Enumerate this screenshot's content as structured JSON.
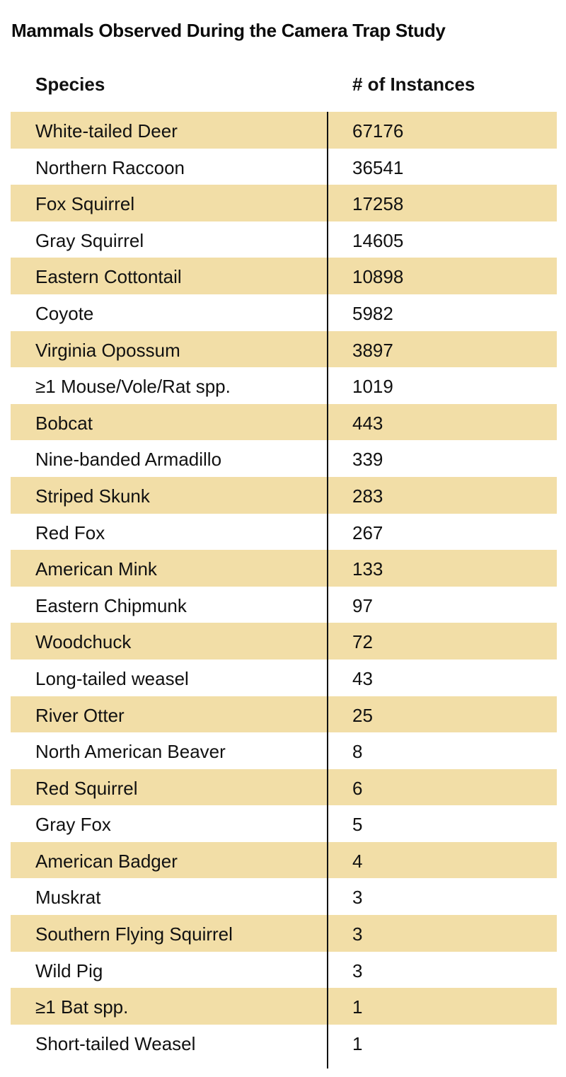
{
  "title": "Mammals Observed During the Camera Trap Study",
  "table": {
    "headers": [
      "Species",
      "# of Instances"
    ],
    "rows": [
      {
        "species": "White-tailed Deer",
        "count": "67176"
      },
      {
        "species": "Northern Raccoon",
        "count": "36541"
      },
      {
        "species": "Fox Squirrel",
        "count": "17258"
      },
      {
        "species": "Gray Squirrel",
        "count": "14605"
      },
      {
        "species": "Eastern Cottontail",
        "count": "10898"
      },
      {
        "species": "Coyote",
        "count": "5982"
      },
      {
        "species": "Virginia Opossum",
        "count": "3897"
      },
      {
        "species": "≥1 Mouse/Vole/Rat spp.",
        "count": "1019"
      },
      {
        "species": "Bobcat",
        "count": "443"
      },
      {
        "species": "Nine-banded Armadillo",
        "count": "339"
      },
      {
        "species": "Striped Skunk",
        "count": "283"
      },
      {
        "species": "Red Fox",
        "count": "267"
      },
      {
        "species": "American Mink",
        "count": "133"
      },
      {
        "species": "Eastern Chipmunk",
        "count": "97"
      },
      {
        "species": "Woodchuck",
        "count": "72"
      },
      {
        "species": "Long-tailed weasel",
        "count": "43"
      },
      {
        "species": "River Otter",
        "count": "25"
      },
      {
        "species": "North American Beaver",
        "count": "8"
      },
      {
        "species": "Red Squirrel",
        "count": "6"
      },
      {
        "species": "Gray Fox",
        "count": "5"
      },
      {
        "species": "American Badger",
        "count": "4"
      },
      {
        "species": "Muskrat",
        "count": "3"
      },
      {
        "species": "Southern Flying Squirrel",
        "count": "3"
      },
      {
        "species": "Wild Pig",
        "count": "3"
      },
      {
        "species": "≥1 Bat spp.",
        "count": "1"
      },
      {
        "species": "Short-tailed Weasel",
        "count": "1"
      }
    ]
  },
  "colors": {
    "band": "#f2dea7",
    "text": "#111111"
  }
}
